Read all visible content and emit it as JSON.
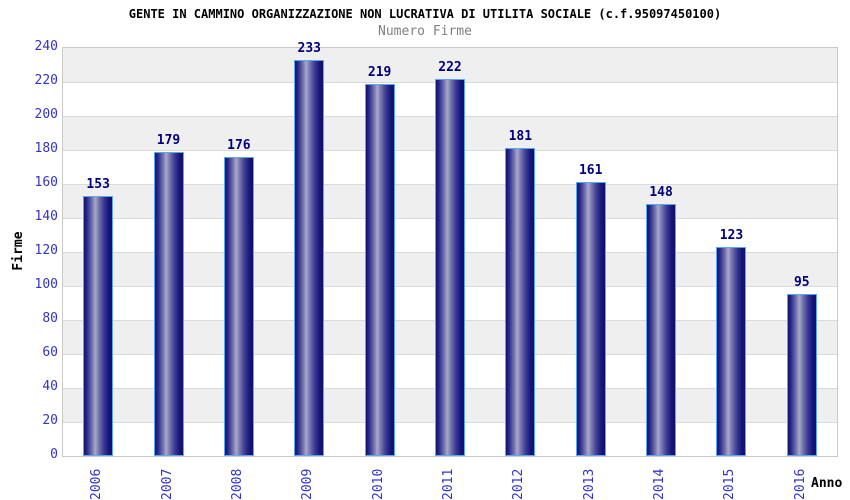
{
  "chart_data": {
    "type": "bar",
    "title": "GENTE IN CAMMINO ORGANIZZAZIONE NON LUCRATIVA DI UTILITA SOCIALE (c.f.95097450100)",
    "subtitle": "Numero Firme",
    "xlabel": "Anno",
    "ylabel": "Firme",
    "categories": [
      "2006",
      "2007",
      "2008",
      "2009",
      "2010",
      "2011",
      "2012",
      "2013",
      "2014",
      "2015",
      "2016"
    ],
    "values": [
      153,
      179,
      176,
      233,
      219,
      222,
      181,
      161,
      148,
      123,
      95
    ],
    "ylim": [
      0,
      240
    ],
    "ytick_step": 20,
    "legend": "none",
    "grid": "horizontal-stripes-per-20-units",
    "colors": {
      "bar_dark": "#10106e",
      "bar_highlight": "#a8a8cc",
      "bar_border": "#59a7f7",
      "axis_tick_label": "#3333cc",
      "value_label": "#00007c",
      "stripe_gray": "#efefef",
      "stripe_white": "#ffffff",
      "gridline": "#dadada",
      "plot_border": "#c9c9c9",
      "title_color": "#000000",
      "subtitle_color": "#808080"
    }
  }
}
